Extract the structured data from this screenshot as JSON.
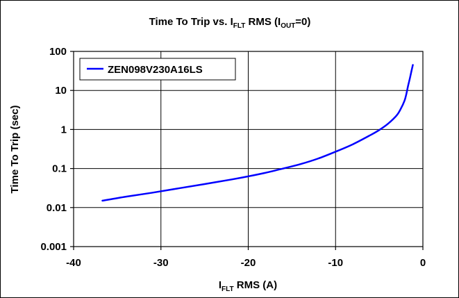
{
  "chart_data": {
    "type": "line",
    "title": {
      "parts": [
        {
          "text": "Time To Trip vs. I",
          "sub": false
        },
        {
          "text": "FLT",
          "sub": true
        },
        {
          "text": " RMS (I",
          "sub": false
        },
        {
          "text": "OUT",
          "sub": true
        },
        {
          "text": "=0)",
          "sub": false
        }
      ]
    },
    "xlabel": {
      "parts": [
        {
          "text": "I",
          "sub": false
        },
        {
          "text": "FLT",
          "sub": true
        },
        {
          "text": " RMS (A)",
          "sub": false
        }
      ]
    },
    "ylabel": "Time To Trip (sec)",
    "xlim": [
      -40,
      0
    ],
    "ylim": [
      0.001,
      100
    ],
    "yscale": "log",
    "grid": true,
    "legend_position": "top-left",
    "x_ticks": [
      -40,
      -30,
      -20,
      -10,
      0
    ],
    "x_tick_labels": [
      "-40",
      "-30",
      "-20",
      "-10",
      "0"
    ],
    "y_ticks": [
      0.001,
      0.01,
      0.1,
      1,
      10,
      100
    ],
    "y_tick_labels": [
      "0.001",
      "0.01",
      "0.1",
      "1",
      "10",
      "100"
    ],
    "series": [
      {
        "name": "ZEN098V230A16LS",
        "color": "#0000ff",
        "x": [
          -36.7,
          -34,
          -31,
          -28,
          -25,
          -22,
          -20,
          -18,
          -16,
          -14,
          -12,
          -10,
          -8,
          -6,
          -5,
          -4,
          -3,
          -2.5,
          -2.1,
          -1.9,
          -1.7,
          -1.5,
          -1.3,
          -1.15
        ],
        "y": [
          0.015,
          0.019,
          0.024,
          0.031,
          0.04,
          0.052,
          0.063,
          0.078,
          0.1,
          0.13,
          0.18,
          0.27,
          0.42,
          0.72,
          0.97,
          1.4,
          2.3,
          3.5,
          5.5,
          8,
          13,
          20,
          32,
          45
        ]
      }
    ]
  }
}
